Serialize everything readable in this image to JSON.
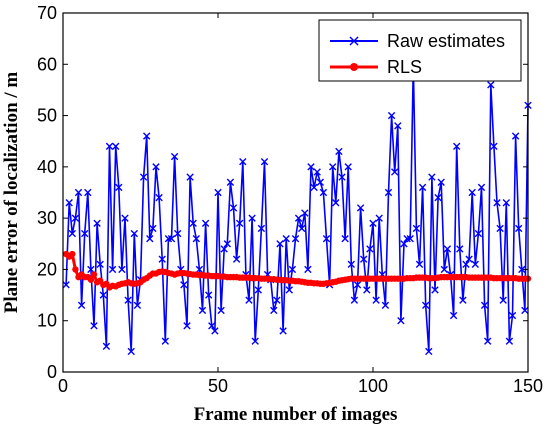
{
  "chart_data": {
    "type": "line",
    "title": "",
    "xlabel": "Frame number of images",
    "ylabel": "Plane error of  localization / m",
    "xlim": [
      0,
      150
    ],
    "ylim": [
      0,
      70
    ],
    "xticks": [
      0,
      50,
      100,
      150
    ],
    "yticks": [
      0,
      10,
      20,
      30,
      40,
      50,
      60,
      70
    ],
    "grid": false,
    "legend_position": "top-right",
    "series": [
      {
        "name": "Raw estimates",
        "color": "#0000ff",
        "marker": "x",
        "x": [
          1,
          2,
          3,
          4,
          5,
          6,
          7,
          8,
          9,
          10,
          11,
          12,
          13,
          14,
          15,
          16,
          17,
          18,
          19,
          20,
          21,
          22,
          23,
          24,
          25,
          26,
          27,
          28,
          29,
          30,
          31,
          32,
          33,
          34,
          35,
          36,
          37,
          38,
          39,
          40,
          41,
          42,
          43,
          44,
          45,
          46,
          47,
          48,
          49,
          50,
          51,
          52,
          53,
          54,
          55,
          56,
          57,
          58,
          59,
          60,
          61,
          62,
          63,
          64,
          65,
          66,
          67,
          68,
          69,
          70,
          71,
          72,
          73,
          74,
          75,
          76,
          77,
          78,
          79,
          80,
          81,
          82,
          83,
          84,
          85,
          86,
          87,
          88,
          89,
          90,
          91,
          92,
          93,
          94,
          95,
          96,
          97,
          98,
          99,
          100,
          101,
          102,
          103,
          104,
          105,
          106,
          107,
          108,
          109,
          110,
          111,
          112,
          113,
          114,
          115,
          116,
          117,
          118,
          119,
          120,
          121,
          122,
          123,
          124,
          125,
          126,
          127,
          128,
          129,
          130,
          131,
          132,
          133,
          134,
          135,
          136,
          137,
          138,
          139,
          140,
          141,
          142,
          143,
          144,
          145,
          146,
          147,
          148,
          149,
          150
        ],
        "y": [
          17,
          33,
          27,
          30,
          35,
          13,
          27,
          35,
          20,
          9,
          29,
          21,
          15,
          5,
          44,
          20,
          44,
          36,
          20,
          30,
          14,
          4,
          27,
          13,
          18,
          38,
          46,
          26,
          28,
          40,
          34,
          22,
          6,
          26,
          26,
          42,
          27,
          20,
          17,
          9,
          38,
          29,
          26,
          20,
          12,
          29,
          15,
          9,
          8,
          35,
          12,
          24,
          25,
          37,
          32,
          22,
          29,
          41,
          19,
          14,
          30,
          6,
          16,
          28,
          41,
          19,
          18,
          12,
          14,
          25,
          8,
          26,
          16,
          20,
          26,
          30,
          28,
          31,
          20,
          40,
          36,
          39,
          37,
          35,
          26,
          17,
          40,
          33,
          43,
          38,
          26,
          40,
          21,
          14,
          17,
          32,
          22,
          16,
          24,
          29,
          14,
          30,
          19,
          13,
          35,
          50,
          39,
          48,
          10,
          25,
          26,
          26,
          60,
          28,
          21,
          36,
          13,
          4,
          38,
          16,
          34,
          37,
          20,
          24,
          19,
          11,
          44,
          24,
          14,
          21,
          22,
          35,
          21,
          27,
          36,
          13,
          6,
          56,
          44,
          33,
          28,
          14,
          33,
          6,
          11,
          46,
          28,
          20,
          12,
          52
        ]
      },
      {
        "name": "RLS",
        "color": "#ff0000",
        "marker": "o",
        "x": [
          1,
          2,
          3,
          4,
          5,
          6,
          7,
          8,
          9,
          10,
          11,
          12,
          13,
          14,
          15,
          16,
          17,
          18,
          19,
          20,
          21,
          22,
          23,
          24,
          25,
          26,
          27,
          28,
          29,
          30,
          31,
          32,
          33,
          34,
          35,
          36,
          37,
          38,
          39,
          40,
          41,
          42,
          43,
          44,
          45,
          46,
          47,
          48,
          49,
          50,
          51,
          52,
          53,
          54,
          55,
          56,
          57,
          58,
          59,
          60,
          61,
          62,
          63,
          64,
          65,
          66,
          67,
          68,
          69,
          70,
          71,
          72,
          73,
          74,
          75,
          76,
          77,
          78,
          79,
          80,
          81,
          82,
          83,
          84,
          85,
          86,
          87,
          88,
          89,
          90,
          91,
          92,
          93,
          94,
          95,
          96,
          97,
          98,
          99,
          100,
          101,
          102,
          103,
          104,
          105,
          106,
          107,
          108,
          109,
          110,
          111,
          112,
          113,
          114,
          115,
          116,
          117,
          118,
          119,
          120,
          121,
          122,
          123,
          124,
          125,
          126,
          127,
          128,
          129,
          130,
          131,
          132,
          133,
          134,
          135,
          136,
          137,
          138,
          139,
          140,
          141,
          142,
          143,
          144,
          145,
          146,
          147,
          148,
          149,
          150
        ],
        "y": [
          23,
          22.5,
          23,
          20,
          18.5,
          19,
          18.5,
          18.5,
          18,
          19,
          17.5,
          17.8,
          17,
          17.2,
          16.5,
          16.8,
          16.7,
          17,
          17.2,
          17.3,
          17.5,
          17.3,
          17.2,
          17.3,
          17.5,
          18,
          18.3,
          18.8,
          19.2,
          19.2,
          19.5,
          19.6,
          19.5,
          19.3,
          19.2,
          19,
          19.2,
          19.3,
          19.3,
          19.2,
          19.1,
          19,
          19,
          18.9,
          18.9,
          18.8,
          18.8,
          18.7,
          18.7,
          18.7,
          18.6,
          18.6,
          18.5,
          18.5,
          18.5,
          18.5,
          18.4,
          18.4,
          18.4,
          18.4,
          18.3,
          18.3,
          18.3,
          18.2,
          18.2,
          18.2,
          18.1,
          18.1,
          18,
          18,
          17.9,
          17.9,
          17.8,
          17.8,
          17.7,
          17.7,
          17.6,
          17.5,
          17.4,
          17.4,
          17.3,
          17.3,
          17.2,
          17.2,
          17.3,
          17.4,
          17.5,
          17.6,
          17.8,
          17.9,
          18,
          18.1,
          18.2,
          18.2,
          18.2,
          18.2,
          18.2,
          18.2,
          18.2,
          18.2,
          18.2,
          18.2,
          18.2,
          18.2,
          18.2,
          18.2,
          18.2,
          18.2,
          18.2,
          18.2,
          18.3,
          18.3,
          18.3,
          18.4,
          18.4,
          18.4,
          18.4,
          18.3,
          18.3,
          18.3,
          18.4,
          18.5,
          18.5,
          18.5,
          18.5,
          18.5,
          18.5,
          18.5,
          18.5,
          18.5,
          18.4,
          18.4,
          18.4,
          18.4,
          18.4,
          18.4,
          18.4,
          18.4,
          18.3,
          18.3,
          18.3,
          18.3,
          18.3,
          18.3,
          18.3,
          18.3,
          18.2,
          18.2,
          18.2,
          18.2
        ]
      }
    ]
  }
}
